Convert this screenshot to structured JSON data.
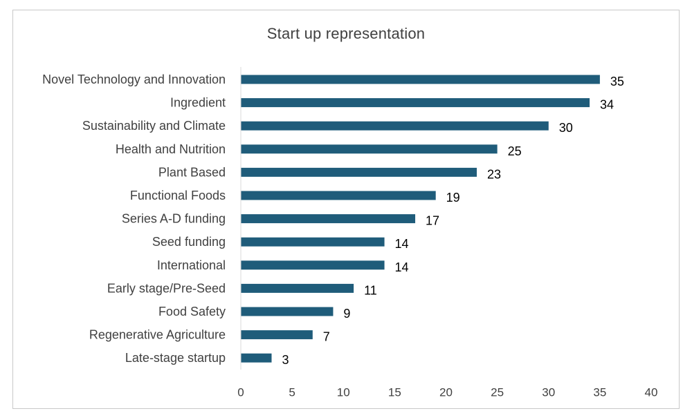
{
  "chart_data": {
    "type": "bar",
    "orientation": "horizontal",
    "title": "Start up representation",
    "xlabel": "",
    "ylabel": "",
    "categories": [
      "Novel Technology and Innovation",
      "Ingredient",
      "Sustainability and Climate",
      "Health and Nutrition",
      "Plant Based",
      "Functional Foods",
      "Series A-D funding",
      "Seed funding",
      "International",
      "Early stage/Pre-Seed",
      "Food Safety",
      "Regenerative Agriculture",
      "Late-stage startup"
    ],
    "values": [
      35,
      34,
      30,
      25,
      23,
      19,
      17,
      14,
      14,
      11,
      9,
      7,
      3
    ],
    "xlim": [
      0,
      40
    ],
    "xticks": [
      0,
      5,
      10,
      15,
      20,
      25,
      30,
      35,
      40
    ],
    "grid": false,
    "legend": "none",
    "data_labels": true,
    "bar_color": "#1f5c7a"
  }
}
